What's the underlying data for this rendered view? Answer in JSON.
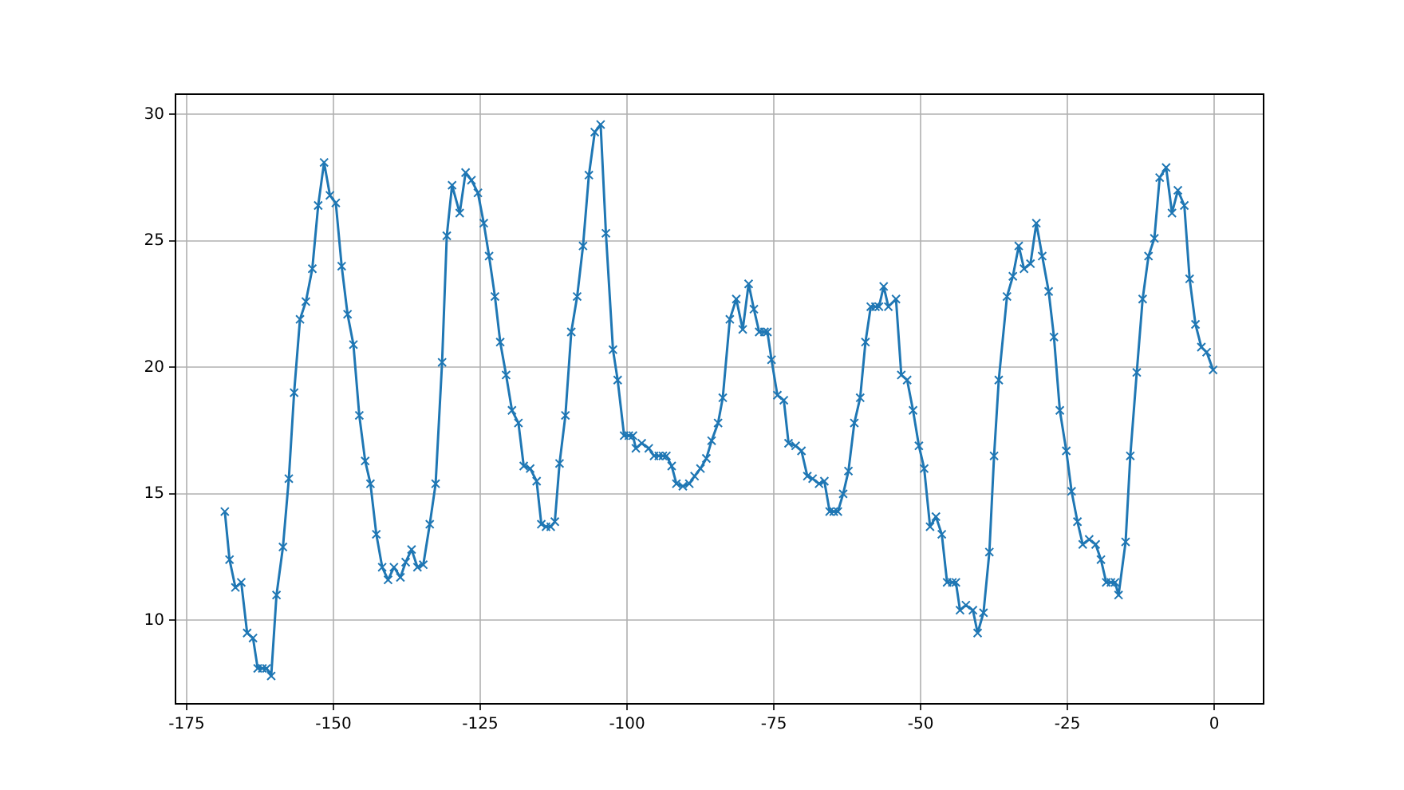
{
  "chart_data": {
    "type": "line",
    "marker": "cross",
    "line_style": "solid",
    "grid": true,
    "legend": false,
    "xlim": [
      -176.9,
      8.4
    ],
    "ylim": [
      6.7,
      30.8
    ],
    "xticks": [
      -175,
      -150,
      -125,
      -100,
      -75,
      -50,
      -25,
      0
    ],
    "yticks": [
      10,
      15,
      20,
      25,
      30
    ],
    "series": [
      {
        "color": "#1f77b4",
        "x": [
          -168.5,
          -167.7,
          -166.7,
          -165.7,
          -164.7,
          -163.7,
          -162.9,
          -162.1,
          -161.4,
          -160.6,
          -159.7,
          -158.6,
          -157.6,
          -156.7,
          -155.7,
          -154.7,
          -153.6,
          -152.6,
          -151.6,
          -150.6,
          -149.6,
          -148.6,
          -147.6,
          -146.6,
          -145.6,
          -144.6,
          -143.7,
          -142.7,
          -141.7,
          -140.7,
          -139.7,
          -138.6,
          -137.7,
          -136.7,
          -135.7,
          -134.7,
          -133.6,
          -132.6,
          -131.5,
          -130.7,
          -129.8,
          -128.5,
          -127.5,
          -126.5,
          -125.4,
          -124.4,
          -123.5,
          -122.5,
          -121.6,
          -120.6,
          -119.6,
          -118.5,
          -117.6,
          -116.5,
          -115.4,
          -114.6,
          -113.8,
          -113.0,
          -112.3,
          -111.5,
          -110.5,
          -109.5,
          -108.5,
          -107.5,
          -106.5,
          -105.5,
          -104.5,
          -103.6,
          -102.4,
          -101.6,
          -100.5,
          -99.7,
          -99.0,
          -98.5,
          -97.5,
          -96.3,
          -95.4,
          -94.6,
          -93.9,
          -93.3,
          -92.4,
          -91.6,
          -90.5,
          -89.4,
          -88.5,
          -87.5,
          -86.5,
          -85.6,
          -84.5,
          -83.7,
          -82.5,
          -81.4,
          -80.3,
          -79.3,
          -78.4,
          -77.5,
          -76.6,
          -76.1,
          -75.4,
          -74.4,
          -73.3,
          -72.5,
          -71.3,
          -70.3,
          -69.3,
          -68.4,
          -67.3,
          -66.4,
          -65.5,
          -64.8,
          -64.1,
          -63.2,
          -62.3,
          -61.3,
          -60.3,
          -59.4,
          -58.5,
          -57.7,
          -57.1,
          -56.3,
          -55.5,
          -54.2,
          -53.3,
          -52.3,
          -51.3,
          -50.3,
          -49.4,
          -48.4,
          -47.4,
          -46.4,
          -45.5,
          -44.6,
          -44.0,
          -43.3,
          -42.3,
          -41.1,
          -40.3,
          -39.3,
          -38.3,
          -37.5,
          -36.7,
          -35.3,
          -34.3,
          -33.3,
          -32.4,
          -31.3,
          -30.3,
          -29.3,
          -28.2,
          -27.3,
          -26.3,
          -25.2,
          -24.3,
          -23.3,
          -22.4,
          -21.3,
          -20.2,
          -19.3,
          -18.4,
          -17.6,
          -16.9,
          -16.3,
          -15.1,
          -14.3,
          -13.2,
          -12.2,
          -11.2,
          -10.2,
          -9.3,
          -8.2,
          -7.2,
          -6.2,
          -5.1,
          -4.2,
          -3.2,
          -2.2,
          -1.3,
          -0.2
        ],
        "values": [
          14.3,
          12.4,
          11.3,
          11.5,
          9.5,
          9.3,
          8.1,
          8.1,
          8.1,
          7.8,
          11.0,
          12.9,
          15.6,
          19.0,
          21.9,
          22.6,
          23.9,
          26.4,
          28.1,
          26.8,
          26.5,
          24.0,
          22.1,
          20.9,
          18.1,
          16.3,
          15.4,
          13.4,
          12.1,
          11.6,
          12.1,
          11.7,
          12.3,
          12.8,
          12.1,
          12.2,
          13.8,
          15.4,
          20.2,
          25.2,
          27.2,
          26.1,
          27.7,
          27.4,
          26.9,
          25.7,
          24.4,
          22.8,
          21.0,
          19.7,
          18.3,
          17.8,
          16.1,
          16.0,
          15.5,
          13.8,
          13.7,
          13.7,
          13.9,
          16.2,
          18.1,
          21.4,
          22.8,
          24.8,
          27.6,
          29.3,
          29.6,
          25.3,
          20.7,
          19.5,
          17.3,
          17.3,
          17.3,
          16.8,
          17.0,
          16.8,
          16.5,
          16.5,
          16.5,
          16.5,
          16.1,
          15.4,
          15.3,
          15.4,
          15.7,
          16.0,
          16.4,
          17.1,
          17.8,
          18.8,
          21.9,
          22.7,
          21.5,
          23.3,
          22.3,
          21.4,
          21.4,
          21.4,
          20.3,
          18.9,
          18.7,
          17.0,
          16.9,
          16.7,
          15.7,
          15.6,
          15.4,
          15.5,
          14.3,
          14.3,
          14.3,
          15.0,
          15.9,
          17.8,
          18.8,
          21.0,
          22.4,
          22.4,
          22.4,
          23.2,
          22.4,
          22.7,
          19.7,
          19.5,
          18.3,
          16.9,
          16.0,
          13.7,
          14.1,
          13.4,
          11.5,
          11.5,
          11.5,
          10.4,
          10.6,
          10.4,
          9.5,
          10.3,
          12.7,
          16.5,
          19.5,
          22.8,
          23.6,
          24.8,
          23.9,
          24.1,
          25.7,
          24.4,
          23.0,
          21.2,
          18.3,
          16.7,
          15.1,
          13.9,
          13.0,
          13.2,
          13.0,
          12.4,
          11.5,
          11.5,
          11.5,
          11.0,
          13.1,
          16.5,
          19.8,
          22.7,
          24.4,
          25.1,
          27.5,
          27.9,
          26.1,
          27.0,
          26.4,
          23.5,
          21.7,
          20.8,
          20.6,
          19.9
        ]
      }
    ]
  }
}
